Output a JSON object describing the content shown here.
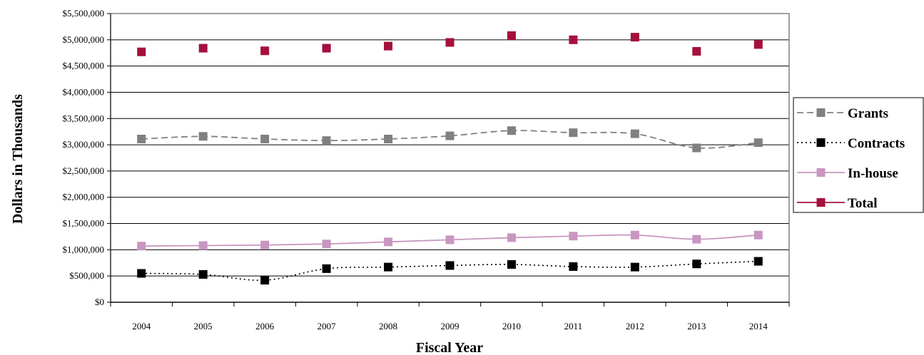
{
  "chart_data": {
    "type": "line",
    "title": "",
    "xlabel": "Fiscal Year",
    "ylabel": "Dollars in Thousands",
    "categories": [
      "2004",
      "2005",
      "2006",
      "2007",
      "2008",
      "2009",
      "2010",
      "2011",
      "2012",
      "2013",
      "2014"
    ],
    "ylim": [
      0,
      5500000
    ],
    "y_ticks": [
      0,
      500000,
      1000000,
      1500000,
      2000000,
      2500000,
      3000000,
      3500000,
      4000000,
      4500000,
      5000000,
      5500000
    ],
    "y_tick_labels": [
      "$0",
      "$500,000",
      "$1,000,000",
      "$1,500,000",
      "$2,000,000",
      "$2,500,000",
      "$3,000,000",
      "$3,500,000",
      "$4,000,000",
      "$4,500,000",
      "$5,000,000",
      "$5,500,000"
    ],
    "grid": true,
    "legend_position": "right",
    "series": [
      {
        "name": "Grants",
        "color": "#808080",
        "line_style": "dashed",
        "marker": "square",
        "values": [
          3110000,
          3160000,
          3110000,
          3080000,
          3110000,
          3170000,
          3270000,
          3230000,
          3210000,
          2940000,
          3040000
        ]
      },
      {
        "name": "Contracts",
        "color": "#000000",
        "line_style": "dotted",
        "marker": "square",
        "values": [
          550000,
          530000,
          420000,
          640000,
          670000,
          700000,
          720000,
          680000,
          670000,
          730000,
          780000
        ]
      },
      {
        "name": "In-house",
        "color": "#c896c0",
        "line_style": "solid",
        "marker": "square",
        "values": [
          1070000,
          1080000,
          1090000,
          1110000,
          1150000,
          1190000,
          1230000,
          1260000,
          1280000,
          1200000,
          1280000
        ]
      },
      {
        "name": "Total",
        "color": "#a5103c",
        "line_style": "none",
        "marker": "square",
        "values": [
          4770000,
          4840000,
          4790000,
          4840000,
          4880000,
          4950000,
          5080000,
          5000000,
          5050000,
          4780000,
          4910000
        ]
      }
    ]
  }
}
